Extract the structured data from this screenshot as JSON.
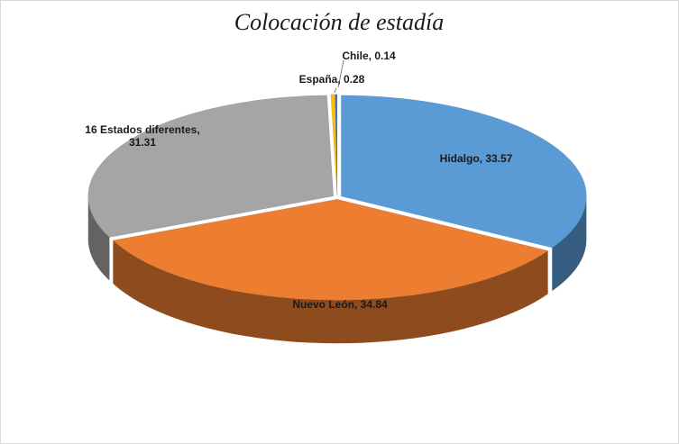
{
  "chart_data": {
    "type": "pie",
    "title": "Colocación de estadía",
    "values": [
      33.57,
      34.84,
      31.31,
      0.28,
      0.14
    ],
    "value_labels": [
      "Hidalgo, 33.57",
      "Nuevo León, 34.84",
      "16 Estados diferentes, 31.31",
      "España, 0.28",
      "Chile, 0.14"
    ],
    "colors": [
      "#5b9bd5",
      "#ed7d31",
      "#a5a5a5",
      "#ffc000",
      "#4472c4"
    ]
  }
}
